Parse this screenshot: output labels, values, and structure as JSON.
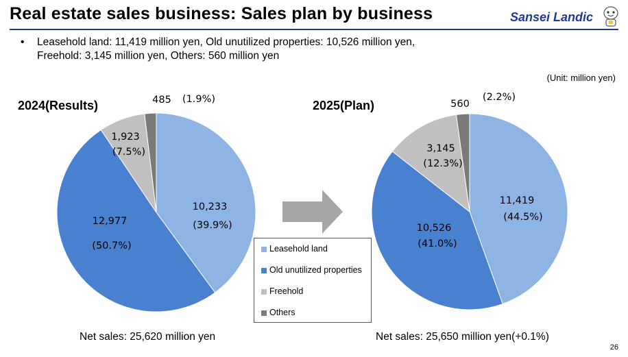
{
  "header": {
    "title": "Real estate sales business: Sales plan by business",
    "logo_text": "Sansei Landic"
  },
  "bullet": {
    "marker": "•",
    "line1": "Leasehold land: 11,419 million yen, Old unutilized properties: 10,526 million yen,",
    "line2": "Freehold: 3,145 million yen, Others: 560 million yen"
  },
  "unit": "(Unit: million yen)",
  "colors": {
    "Leasehold land": "#8eb4e3",
    "Old unutilized properties": "#4a80d0",
    "Freehold": "#c0c0c0",
    "Others": "#7a7a7a",
    "arrow": "#a6a6a6",
    "brand": "#1f3a93"
  },
  "chart_data": [
    {
      "type": "pie",
      "title": "2024(Results)",
      "net_sales": "Net sales: 25,620 million yen",
      "categories": [
        "Leasehold land",
        "Old unutilized properties",
        "Freehold",
        "Others"
      ],
      "values": [
        10233,
        12977,
        1923,
        485
      ],
      "value_labels": [
        "10,233",
        "12,977",
        "1,923",
        "485"
      ],
      "percent_labels": [
        "(39.9%)",
        "(50.7%)",
        "(7.5%)",
        "(1.9%)"
      ],
      "percents": [
        39.9,
        50.7,
        7.5,
        1.9
      ]
    },
    {
      "type": "pie",
      "title": "2025(Plan)",
      "net_sales": "Net sales: 25,650 million yen(+0.1%)",
      "categories": [
        "Leasehold land",
        "Old unutilized properties",
        "Freehold",
        "Others"
      ],
      "values": [
        11419,
        10526,
        3145,
        560
      ],
      "value_labels": [
        "11,419",
        "10,526",
        "3,145",
        "560"
      ],
      "percent_labels": [
        "(44.5%)",
        "(41.0%)",
        "(12.3%)",
        "(2.2%)"
      ],
      "percents": [
        44.5,
        41.0,
        12.3,
        2.2
      ]
    }
  ],
  "legend": {
    "items": [
      "Leasehold land",
      "Old unutilized properties",
      "Freehold",
      "Others"
    ]
  },
  "page_number": "26"
}
